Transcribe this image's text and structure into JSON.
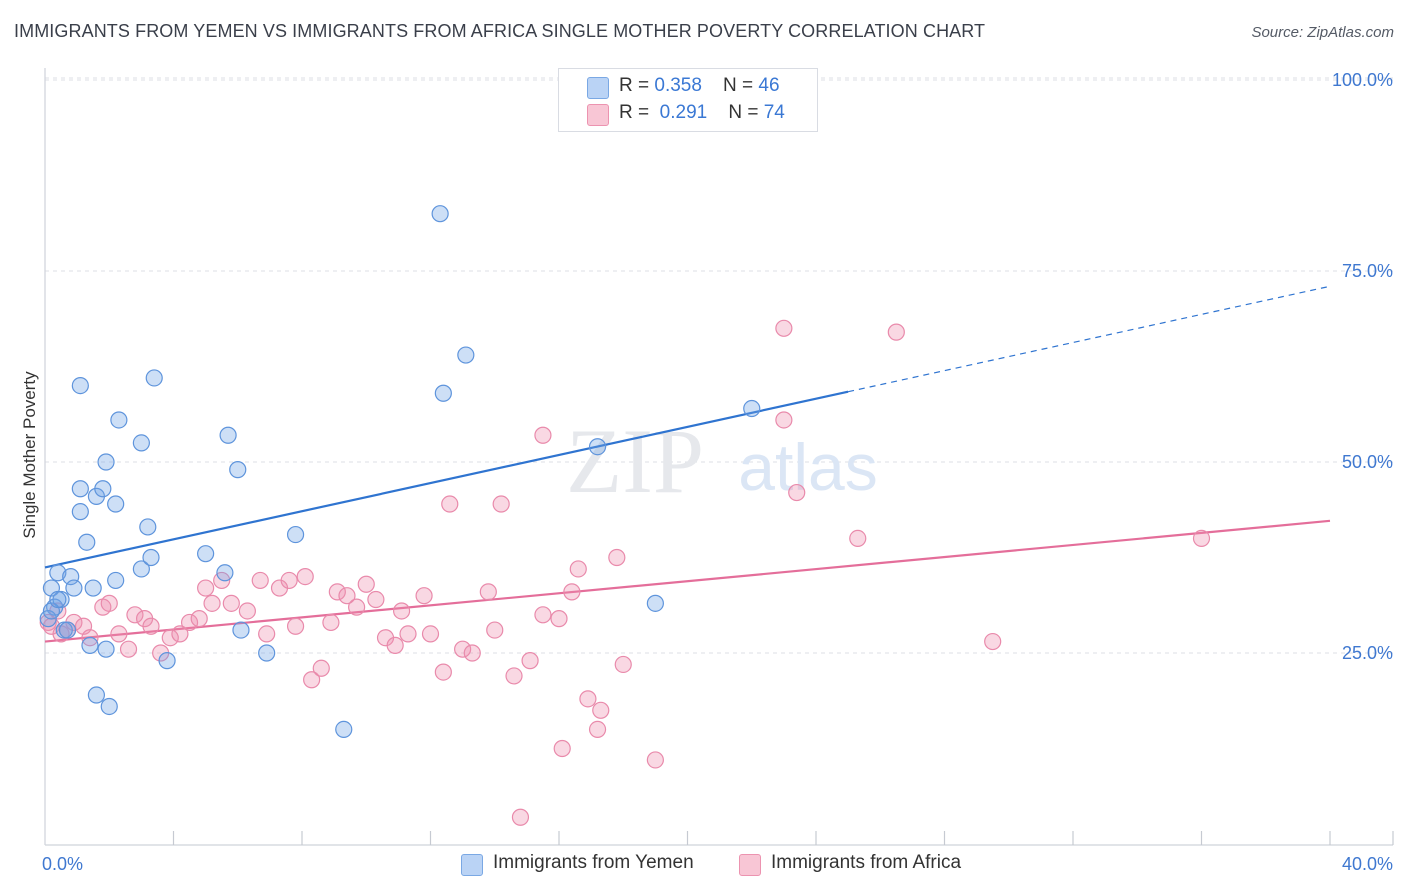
{
  "title": "IMMIGRANTS FROM YEMEN VS IMMIGRANTS FROM AFRICA SINGLE MOTHER POVERTY CORRELATION CHART",
  "source": "Source: ZipAtlas.com",
  "watermark": {
    "zip": "ZIP",
    "atlas": "atlas"
  },
  "legend": {
    "rows": [
      {
        "r_label": "R = ",
        "r_value": "0.358",
        "n_label": "N = ",
        "n_value": "46"
      },
      {
        "r_label": "R = ",
        "r_value": "0.291",
        "n_label": "N = ",
        "n_value": "74"
      }
    ]
  },
  "chart_data": {
    "type": "scatter",
    "title": "IMMIGRANTS FROM YEMEN VS IMMIGRANTS FROM AFRICA SINGLE MOTHER POVERTY CORRELATION CHART",
    "xlabel": "",
    "ylabel": "Single Mother Poverty",
    "xlim": [
      0,
      40
    ],
    "ylim": [
      0,
      102
    ],
    "x_tick_labels": [
      "0.0%",
      "40.0%"
    ],
    "y_tick_labels": [
      "25.0%",
      "50.0%",
      "75.0%",
      "100.0%"
    ],
    "y_ticks": [
      25,
      50,
      75,
      100
    ],
    "legend_position": "top-center",
    "colors": {
      "yemen": "#6fa3e6",
      "africa": "#ee8fae",
      "yemen_line": "#2f74d0",
      "africa_line": "#e46e9a",
      "tick_text": "#3f78d0"
    },
    "series": [
      {
        "name": "Immigrants from Yemen",
        "R": 0.358,
        "N": 46,
        "trend": {
          "x0": 0,
          "y0": 36.2,
          "x1": 25,
          "y1": 59.2,
          "dashed_to_x": 40,
          "dashed_to_y": 73.0
        },
        "points": [
          [
            0.2,
            33.5
          ],
          [
            0.3,
            31
          ],
          [
            0.4,
            35.5
          ],
          [
            0.5,
            32
          ],
          [
            0.6,
            28
          ],
          [
            0.8,
            35
          ],
          [
            0.9,
            33.5
          ],
          [
            1.1,
            43.5
          ],
          [
            1.1,
            46.5
          ],
          [
            1.1,
            60
          ],
          [
            1.3,
            39.5
          ],
          [
            1.4,
            26
          ],
          [
            1.5,
            33.5
          ],
          [
            1.6,
            45.5
          ],
          [
            1.6,
            19.5
          ],
          [
            1.8,
            46.5
          ],
          [
            1.9,
            25.5
          ],
          [
            1.9,
            50
          ],
          [
            2.0,
            18
          ],
          [
            2.2,
            44.5
          ],
          [
            2.2,
            34.5
          ],
          [
            2.3,
            55.5
          ],
          [
            3.0,
            52.5
          ],
          [
            3.0,
            36
          ],
          [
            3.2,
            41.5
          ],
          [
            3.3,
            37.5
          ],
          [
            3.4,
            61
          ],
          [
            3.8,
            24
          ],
          [
            5.0,
            38
          ],
          [
            5.6,
            35.5
          ],
          [
            5.7,
            53.5
          ],
          [
            6.0,
            49
          ],
          [
            6.1,
            28
          ],
          [
            6.9,
            25
          ],
          [
            7.8,
            40.5
          ],
          [
            9.3,
            15
          ],
          [
            12.3,
            82.5
          ],
          [
            12.4,
            59
          ],
          [
            13.1,
            64
          ],
          [
            17.2,
            52
          ],
          [
            19.0,
            31.5
          ],
          [
            22.0,
            57
          ],
          [
            0.1,
            29.5
          ],
          [
            0.2,
            30.5
          ],
          [
            0.4,
            32
          ],
          [
            0.7,
            28
          ]
        ]
      },
      {
        "name": "Immigrants from Africa",
        "R": 0.291,
        "N": 74,
        "trend": {
          "x0": 0,
          "y0": 26.5,
          "x1": 40,
          "y1": 42.3
        },
        "points": [
          [
            0.1,
            29
          ],
          [
            0.2,
            28.5
          ],
          [
            0.4,
            30.5
          ],
          [
            0.5,
            27.5
          ],
          [
            0.7,
            28
          ],
          [
            0.9,
            29
          ],
          [
            1.2,
            28.5
          ],
          [
            1.4,
            27
          ],
          [
            1.8,
            31
          ],
          [
            2.0,
            31.5
          ],
          [
            2.3,
            27.5
          ],
          [
            2.6,
            25.5
          ],
          [
            2.8,
            30
          ],
          [
            3.1,
            29.5
          ],
          [
            3.3,
            28.5
          ],
          [
            3.6,
            25
          ],
          [
            3.9,
            27
          ],
          [
            4.2,
            27.5
          ],
          [
            4.5,
            29
          ],
          [
            4.8,
            29.5
          ],
          [
            5.0,
            33.5
          ],
          [
            5.2,
            31.5
          ],
          [
            5.5,
            34.5
          ],
          [
            5.8,
            31.5
          ],
          [
            6.3,
            30.5
          ],
          [
            6.7,
            34.5
          ],
          [
            6.9,
            27.5
          ],
          [
            7.3,
            33.5
          ],
          [
            7.6,
            34.5
          ],
          [
            7.8,
            28.5
          ],
          [
            8.1,
            35
          ],
          [
            8.3,
            21.5
          ],
          [
            8.6,
            23
          ],
          [
            8.9,
            29
          ],
          [
            9.1,
            33
          ],
          [
            9.4,
            32.5
          ],
          [
            9.7,
            31
          ],
          [
            10.0,
            34
          ],
          [
            10.3,
            32
          ],
          [
            10.6,
            27
          ],
          [
            10.9,
            26
          ],
          [
            11.1,
            30.5
          ],
          [
            11.3,
            27.5
          ],
          [
            11.8,
            32.5
          ],
          [
            12.0,
            27.5
          ],
          [
            12.4,
            22.5
          ],
          [
            12.6,
            44.5
          ],
          [
            13.0,
            25.5
          ],
          [
            13.3,
            25
          ],
          [
            13.8,
            33
          ],
          [
            14.0,
            28
          ],
          [
            14.2,
            44.5
          ],
          [
            14.6,
            22
          ],
          [
            14.8,
            3.5
          ],
          [
            15.1,
            24
          ],
          [
            15.5,
            30
          ],
          [
            15.5,
            53.5
          ],
          [
            16.0,
            29.5
          ],
          [
            16.1,
            12.5
          ],
          [
            16.4,
            33
          ],
          [
            16.6,
            36
          ],
          [
            16.9,
            19
          ],
          [
            17.2,
            15
          ],
          [
            17.3,
            17.5
          ],
          [
            17.8,
            37.5
          ],
          [
            18.0,
            23.5
          ],
          [
            19.0,
            11
          ],
          [
            23.0,
            67.5
          ],
          [
            23.0,
            55.5
          ],
          [
            23.4,
            46
          ],
          [
            25.3,
            40
          ],
          [
            26.5,
            67
          ],
          [
            29.5,
            26.5
          ],
          [
            36.0,
            40
          ]
        ]
      }
    ]
  }
}
